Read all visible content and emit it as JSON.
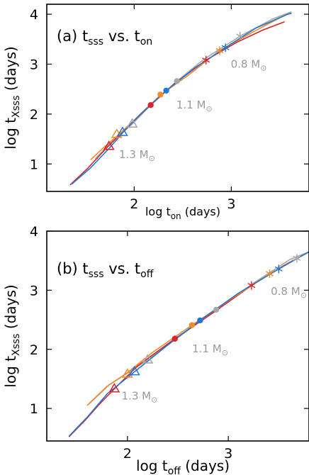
{
  "colors": {
    "m08": "#a6a6a6",
    "m11": "#1f78d1",
    "m12": "#ef8a2a",
    "m13": "#d9242b"
  },
  "chart_data": [
    {
      "type": "line",
      "panel_label": "(a)",
      "title_main": "t",
      "title_main_sub": "sss",
      "title_vs": " vs. t",
      "title_vs_sub": "on",
      "xlabel_main": "log t",
      "xlabel_sub": "on",
      "xlabel_unit": " (days)",
      "ylabel_main": "log t",
      "ylabel_sub": "Xsss",
      "ylabel_unit": " (days)",
      "xlim": [
        1.1,
        3.8
      ],
      "ylim": [
        0.45,
        4.2
      ],
      "x_ticks": [
        2,
        3
      ],
      "x_tick_labels": [
        "2",
        "3"
      ],
      "y_ticks": [
        1,
        2,
        3,
        4
      ],
      "y_tick_labels": [
        "1",
        "2",
        "3",
        "4"
      ],
      "mass_labels": [
        {
          "text": "0.8 M",
          "sub": "⊙",
          "x": 3.18,
          "y": 2.93
        },
        {
          "text": "1.1 M",
          "sub": "⊙",
          "x": 2.62,
          "y": 2.11
        },
        {
          "text": "1.3 M",
          "sub": "⊙",
          "x": 2.03,
          "y": 1.12
        }
      ],
      "series": [
        {
          "color_key": "m13",
          "x": [
            1.34,
            1.52,
            1.72,
            1.95,
            2.17,
            2.42,
            2.74,
            3.05,
            3.32,
            3.55
          ],
          "y": [
            0.58,
            0.91,
            1.33,
            1.78,
            2.18,
            2.62,
            3.08,
            3.43,
            3.68,
            3.85
          ]
        },
        {
          "color_key": "m12",
          "x": [
            1.55,
            1.68,
            1.83,
            2.05,
            2.27,
            2.55,
            2.88,
            3.2,
            3.55,
            3.62
          ],
          "y": [
            1.08,
            1.32,
            1.57,
            1.97,
            2.38,
            2.77,
            3.27,
            3.62,
            3.98,
            4.02
          ]
        },
        {
          "color_key": "m11",
          "x": [
            1.36,
            1.55,
            1.75,
            1.88,
            2.08,
            2.33,
            2.62,
            2.94,
            3.25,
            3.58,
            3.62
          ],
          "y": [
            0.6,
            0.92,
            1.33,
            1.62,
            2.03,
            2.47,
            2.92,
            3.33,
            3.72,
            4.0,
            4.02
          ]
        },
        {
          "color_key": "m08",
          "x": [
            1.6,
            1.78,
            1.98,
            2.18,
            2.44,
            2.72,
            3.09,
            3.42,
            3.62
          ],
          "y": [
            1.1,
            1.48,
            1.8,
            2.2,
            2.66,
            3.1,
            3.56,
            3.9,
            4.05
          ]
        }
      ],
      "markers": [
        {
          "shape": "triangle",
          "color_key": "m13",
          "x": 1.74,
          "y": 1.35
        },
        {
          "shape": "triangle",
          "color_key": "m12",
          "x": 1.82,
          "y": 1.59
        },
        {
          "shape": "triangle",
          "color_key": "m11",
          "x": 1.88,
          "y": 1.63
        },
        {
          "shape": "triangle",
          "color_key": "m08",
          "x": 1.98,
          "y": 1.8
        },
        {
          "shape": "circle",
          "color_key": "m13",
          "x": 2.17,
          "y": 2.18
        },
        {
          "shape": "circle",
          "color_key": "m12",
          "x": 2.27,
          "y": 2.39
        },
        {
          "shape": "circle",
          "color_key": "m11",
          "x": 2.33,
          "y": 2.47
        },
        {
          "shape": "circle",
          "color_key": "m08",
          "x": 2.44,
          "y": 2.66
        },
        {
          "shape": "asterisk",
          "color_key": "m13",
          "x": 2.74,
          "y": 3.08
        },
        {
          "shape": "asterisk",
          "color_key": "m12",
          "x": 2.88,
          "y": 3.27
        },
        {
          "shape": "asterisk",
          "color_key": "m11",
          "x": 2.94,
          "y": 3.33
        },
        {
          "shape": "asterisk",
          "color_key": "m08",
          "x": 3.09,
          "y": 3.56
        }
      ]
    },
    {
      "type": "line",
      "panel_label": "(b)",
      "title_main": "t",
      "title_main_sub": "sss",
      "title_vs": " vs. t",
      "title_vs_sub": "off",
      "xlabel_main": "log t",
      "xlabel_sub": "off",
      "xlabel_unit": " (days)",
      "ylabel_main": "log t",
      "ylabel_sub": "Xsss",
      "ylabel_unit": " (days)",
      "xlim": [
        1.2,
        3.8
      ],
      "ylim": [
        0.45,
        4.0
      ],
      "x_ticks": [
        2,
        3
      ],
      "x_tick_labels": [
        "2",
        "3"
      ],
      "y_ticks": [
        1,
        2,
        3,
        4
      ],
      "y_tick_labels": [
        "1",
        "2",
        "3",
        "4"
      ],
      "mass_labels": [
        {
          "text": "0.8 M",
          "sub": "⊙",
          "x": 3.6,
          "y": 2.92
        },
        {
          "text": "1.1 M",
          "sub": "⊙",
          "x": 2.82,
          "y": 1.95
        },
        {
          "text": "1.3 M",
          "sub": "⊙",
          "x": 2.12,
          "y": 1.15
        }
      ],
      "series": [
        {
          "color_key": "m13",
          "x": [
            1.42,
            1.58,
            1.72,
            1.87,
            2.1,
            2.47,
            2.85,
            3.23,
            3.55,
            3.8
          ],
          "y": [
            0.52,
            0.8,
            1.07,
            1.33,
            1.72,
            2.18,
            2.62,
            3.08,
            3.42,
            3.65
          ]
        },
        {
          "color_key": "m12",
          "x": [
            1.6,
            1.8,
            1.98,
            2.25,
            2.64,
            3.05,
            3.41,
            3.8
          ],
          "y": [
            1.05,
            1.38,
            1.58,
            1.95,
            2.41,
            2.88,
            3.28,
            3.65
          ]
        },
        {
          "color_key": "m11",
          "x": [
            1.42,
            1.6,
            1.8,
            2.07,
            2.42,
            2.72,
            3.1,
            3.5,
            3.8
          ],
          "y": [
            0.53,
            0.85,
            1.25,
            1.62,
            2.1,
            2.49,
            2.95,
            3.36,
            3.65
          ]
        },
        {
          "color_key": "m08",
          "x": [
            1.62,
            1.82,
            2.05,
            2.2,
            2.5,
            2.88,
            3.25,
            3.61,
            3.8
          ],
          "y": [
            1.08,
            1.4,
            1.65,
            1.82,
            2.2,
            2.67,
            3.12,
            3.52,
            3.65
          ]
        }
      ],
      "markers": [
        {
          "shape": "triangle",
          "color_key": "m13",
          "x": 1.87,
          "y": 1.33
        },
        {
          "shape": "triangle",
          "color_key": "m12",
          "x": 2.0,
          "y": 1.58
        },
        {
          "shape": "triangle",
          "color_key": "m11",
          "x": 2.07,
          "y": 1.62
        },
        {
          "shape": "triangle",
          "color_key": "m08",
          "x": 2.2,
          "y": 1.82
        },
        {
          "shape": "circle",
          "color_key": "m13",
          "x": 2.47,
          "y": 2.18
        },
        {
          "shape": "circle",
          "color_key": "m12",
          "x": 2.64,
          "y": 2.41
        },
        {
          "shape": "circle",
          "color_key": "m11",
          "x": 2.72,
          "y": 2.49
        },
        {
          "shape": "circle",
          "color_key": "m08",
          "x": 2.88,
          "y": 2.67
        },
        {
          "shape": "asterisk",
          "color_key": "m13",
          "x": 3.23,
          "y": 3.08
        },
        {
          "shape": "asterisk",
          "color_key": "m12",
          "x": 3.41,
          "y": 3.28
        },
        {
          "shape": "asterisk",
          "color_key": "m11",
          "x": 3.5,
          "y": 3.36
        },
        {
          "shape": "asterisk",
          "color_key": "m08",
          "x": 3.68,
          "y": 3.54
        }
      ]
    }
  ]
}
